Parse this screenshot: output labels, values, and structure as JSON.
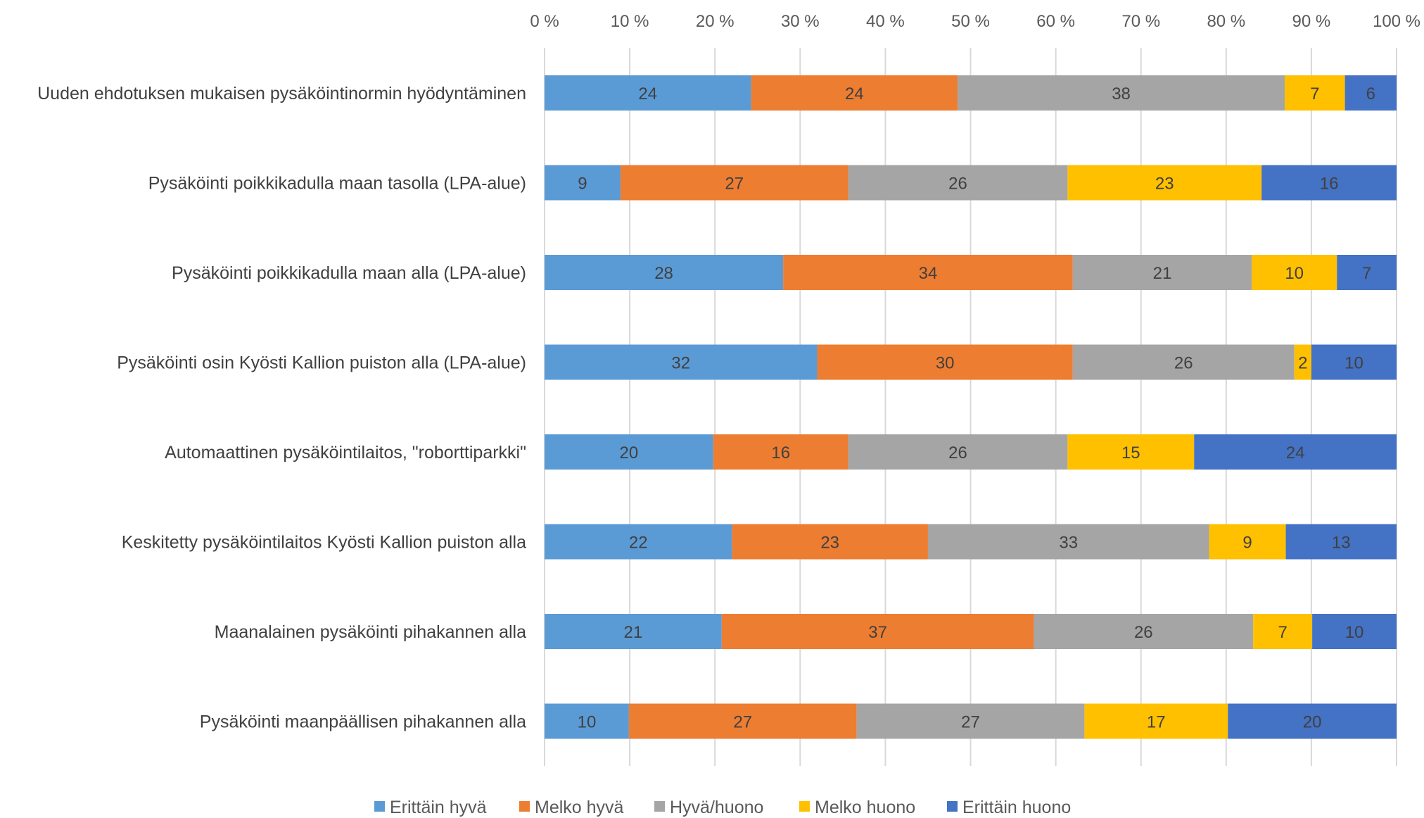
{
  "chart_data": {
    "type": "bar",
    "orientation": "horizontal",
    "stacked": true,
    "percent_axis": true,
    "xlim": [
      0,
      100
    ],
    "x_ticks": [
      "0 %",
      "10 %",
      "20 %",
      "30 %",
      "40 %",
      "50 %",
      "60 %",
      "70 %",
      "80 %",
      "90 %",
      "100 %"
    ],
    "x_tick_values": [
      0,
      10,
      20,
      30,
      40,
      50,
      60,
      70,
      80,
      90,
      100
    ],
    "x_axis_position": "top",
    "grid": "vertical",
    "legend_position": "bottom",
    "categories": [
      "Uuden ehdotuksen mukaisen pysäköintinormin hyödyntäminen",
      "Pysäköinti poikkikadulla maan tasolla (LPA-alue)",
      "Pysäköinti poikkikadulla maan alla (LPA-alue)",
      "Pysäköinti osin Kyösti Kallion puiston alla (LPA-alue)",
      "Automaattinen pysäköintilaitos, \"roborttiparkki\"",
      "Keskitetty pysäköintilaitos Kyösti Kallion puiston alla",
      "Maanalainen pysäköinti pihakannen alla",
      "Pysäköinti maanpäällisen pihakannen alla"
    ],
    "series": [
      {
        "name": "Erittäin hyvä",
        "color": "#5B9BD5",
        "values": [
          24,
          9,
          28,
          32,
          20,
          22,
          21,
          10
        ]
      },
      {
        "name": "Melko hyvä",
        "color": "#ED7D31",
        "values": [
          24,
          27,
          34,
          30,
          16,
          23,
          37,
          27
        ]
      },
      {
        "name": "Hyvä/huono",
        "color": "#A5A5A5",
        "values": [
          38,
          26,
          21,
          26,
          26,
          33,
          26,
          27
        ]
      },
      {
        "name": "Melko huono",
        "color": "#FFC000",
        "values": [
          7,
          23,
          10,
          2,
          15,
          9,
          7,
          17
        ]
      },
      {
        "name": "Erittäin huono",
        "color": "#4472C4",
        "values": [
          6,
          16,
          7,
          10,
          24,
          13,
          10,
          20
        ]
      }
    ]
  }
}
